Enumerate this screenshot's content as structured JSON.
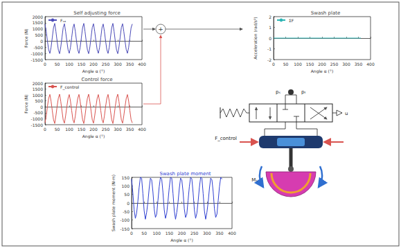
{
  "chart_data": [
    {
      "type": "line",
      "title": "Self adjusting force",
      "xlabel": "Angle α (°)",
      "ylabel": "Force (N)",
      "x": [
        0,
        5,
        10,
        15,
        20,
        25,
        30,
        35,
        40,
        45,
        50,
        55,
        60,
        65,
        70,
        75,
        80,
        85,
        90,
        95,
        100,
        105,
        110,
        115,
        120,
        125,
        130,
        135,
        140,
        145,
        150,
        155,
        160,
        165,
        170,
        175,
        180,
        185,
        190,
        195,
        200,
        205,
        210,
        215,
        220,
        225,
        230,
        235,
        240,
        245,
        250,
        255,
        260,
        265,
        270,
        275,
        280,
        285,
        290,
        295,
        300,
        305,
        310,
        315,
        320,
        325,
        330,
        335,
        340,
        345,
        350,
        355,
        360
      ],
      "series": [
        {
          "name": "Fₛₐ",
          "color": "#4a4ab8",
          "values": [
            1400,
            800,
            0,
            -700,
            -1000,
            -500,
            300,
            1100,
            1450,
            780,
            -20,
            -720,
            -1020,
            -480,
            320,
            1120,
            1420,
            790,
            10,
            -690,
            -990,
            -510,
            290,
            1090,
            1400,
            800,
            0,
            -700,
            -1000,
            -500,
            300,
            1100,
            1450,
            780,
            -20,
            -720,
            -1020,
            -480,
            320,
            1120,
            1420,
            790,
            10,
            -690,
            -990,
            -510,
            290,
            1090,
            1400,
            800,
            0,
            -700,
            -1000,
            -500,
            300,
            1100,
            1450,
            780,
            -20,
            -720,
            -1020,
            -480,
            320,
            1120,
            1420,
            790,
            10,
            -690,
            -990,
            -510,
            290,
            1090,
            1400
          ]
        }
      ],
      "xlim": [
        0,
        400
      ],
      "xticks": [
        0,
        50,
        100,
        150,
        200,
        250,
        300,
        350,
        400
      ],
      "ylim": [
        -1500,
        2000
      ],
      "yticks": [
        -1500,
        -1000,
        -500,
        0,
        500,
        1000,
        1500,
        2000
      ],
      "legend": "upper left",
      "grid": false
    },
    {
      "type": "line",
      "title": "Control force",
      "xlabel": "Angle α (°)",
      "ylabel": "Force (N)",
      "x": [
        0,
        5,
        10,
        15,
        20,
        25,
        30,
        35,
        40,
        45,
        50,
        55,
        60,
        65,
        70,
        75,
        80,
        85,
        90,
        95,
        100,
        105,
        110,
        115,
        120,
        125,
        130,
        135,
        140,
        145,
        150,
        155,
        160,
        165,
        170,
        175,
        180,
        185,
        190,
        195,
        200,
        205,
        210,
        215,
        220,
        225,
        230,
        235,
        240,
        245,
        250,
        255,
        260,
        265,
        270,
        275,
        280,
        285,
        290,
        295,
        300,
        305,
        310,
        315,
        320,
        325,
        330,
        335,
        340,
        345,
        350,
        355,
        360
      ],
      "series": [
        {
          "name": "F_control",
          "color": "#d9534f",
          "values": [
            -1350,
            -760,
            40,
            720,
            1050,
            470,
            -320,
            -1080,
            -1400,
            -740,
            60,
            740,
            1070,
            450,
            -340,
            -1100,
            -1370,
            -750,
            30,
            710,
            1040,
            480,
            -310,
            -1070,
            -1350,
            -760,
            40,
            720,
            1050,
            470,
            -320,
            -1080,
            -1400,
            -740,
            60,
            740,
            1070,
            450,
            -340,
            -1100,
            -1370,
            -750,
            30,
            710,
            1040,
            480,
            -310,
            -1070,
            -1350,
            -760,
            40,
            720,
            1050,
            470,
            -320,
            -1080,
            -1400,
            -740,
            60,
            740,
            1070,
            450,
            -340,
            -1100,
            -1370,
            -750,
            30,
            710,
            1040,
            480,
            -310,
            -1070,
            -1350
          ]
        }
      ],
      "xlim": [
        0,
        400
      ],
      "xticks": [
        0,
        50,
        100,
        150,
        200,
        250,
        300,
        350,
        400
      ],
      "ylim": [
        -1500,
        2000
      ],
      "yticks": [
        -1500,
        -1000,
        -500,
        0,
        500,
        1000,
        1500,
        2000
      ],
      "legend": "upper left",
      "grid": false
    },
    {
      "type": "line",
      "title": "Swash plate",
      "xlabel": "Angle α (°)",
      "ylabel": "Acceleration (rad/s²)",
      "x": [
        0,
        360
      ],
      "series": [
        {
          "name": "ΣF",
          "color": "#2bb3b3",
          "values": [
            0,
            0
          ]
        }
      ],
      "xlim": [
        0,
        400
      ],
      "xticks": [
        0,
        50,
        100,
        150,
        200,
        250,
        300,
        350,
        400
      ],
      "ylim": [
        -2,
        2
      ],
      "yticks": [
        -2,
        -1,
        0,
        1,
        2
      ],
      "legend": "upper left",
      "grid": false
    },
    {
      "type": "line",
      "title": "Swash plate moment",
      "xlabel": "Angle α (°)",
      "ylabel": "Swash plate moment (N·m)",
      "x": [
        0,
        5,
        10,
        15,
        20,
        25,
        30,
        35,
        40,
        45,
        50,
        55,
        60,
        65,
        70,
        75,
        80,
        85,
        90,
        95,
        100,
        105,
        110,
        115,
        120,
        125,
        130,
        135,
        140,
        145,
        150,
        155,
        160,
        165,
        170,
        175,
        180,
        185,
        190,
        195,
        200,
        205,
        210,
        215,
        220,
        225,
        230,
        235,
        240,
        245,
        250,
        255,
        260,
        265,
        270,
        275,
        280,
        285,
        290,
        295,
        300,
        305,
        310,
        315,
        320,
        325,
        330,
        335,
        340,
        345,
        350,
        355,
        360
      ],
      "color": "#2f3fd0",
      "values": [
        140,
        60,
        -40,
        -90,
        -60,
        10,
        90,
        150,
        145,
        55,
        -45,
        -95,
        -55,
        5,
        85,
        145,
        135,
        65,
        -35,
        -85,
        -65,
        15,
        95,
        150,
        140,
        60,
        -40,
        -90,
        -60,
        10,
        90,
        150,
        145,
        55,
        -45,
        -95,
        -55,
        5,
        85,
        145,
        135,
        65,
        -35,
        -85,
        -65,
        15,
        95,
        150,
        140,
        60,
        -40,
        -90,
        -60,
        10,
        90,
        150,
        145,
        55,
        -45,
        -95,
        -55,
        5,
        85,
        145,
        135,
        65,
        -35,
        -85,
        -65,
        15,
        95,
        150,
        140
      ],
      "xlim": [
        0,
        400
      ],
      "xticks": [
        0,
        50,
        100,
        150,
        200,
        250,
        300,
        350,
        400
      ],
      "ylim": [
        -150,
        150
      ],
      "yticks": [
        -150,
        -100,
        -50,
        0,
        50,
        100,
        150
      ],
      "grid": false
    }
  ],
  "diagram": {
    "sum_sign": "+",
    "valve_ports": [
      "pₛ",
      "pₜ"
    ],
    "valve_input": "u",
    "piston_force": "F_control",
    "swash_moment": "Mₛ"
  }
}
